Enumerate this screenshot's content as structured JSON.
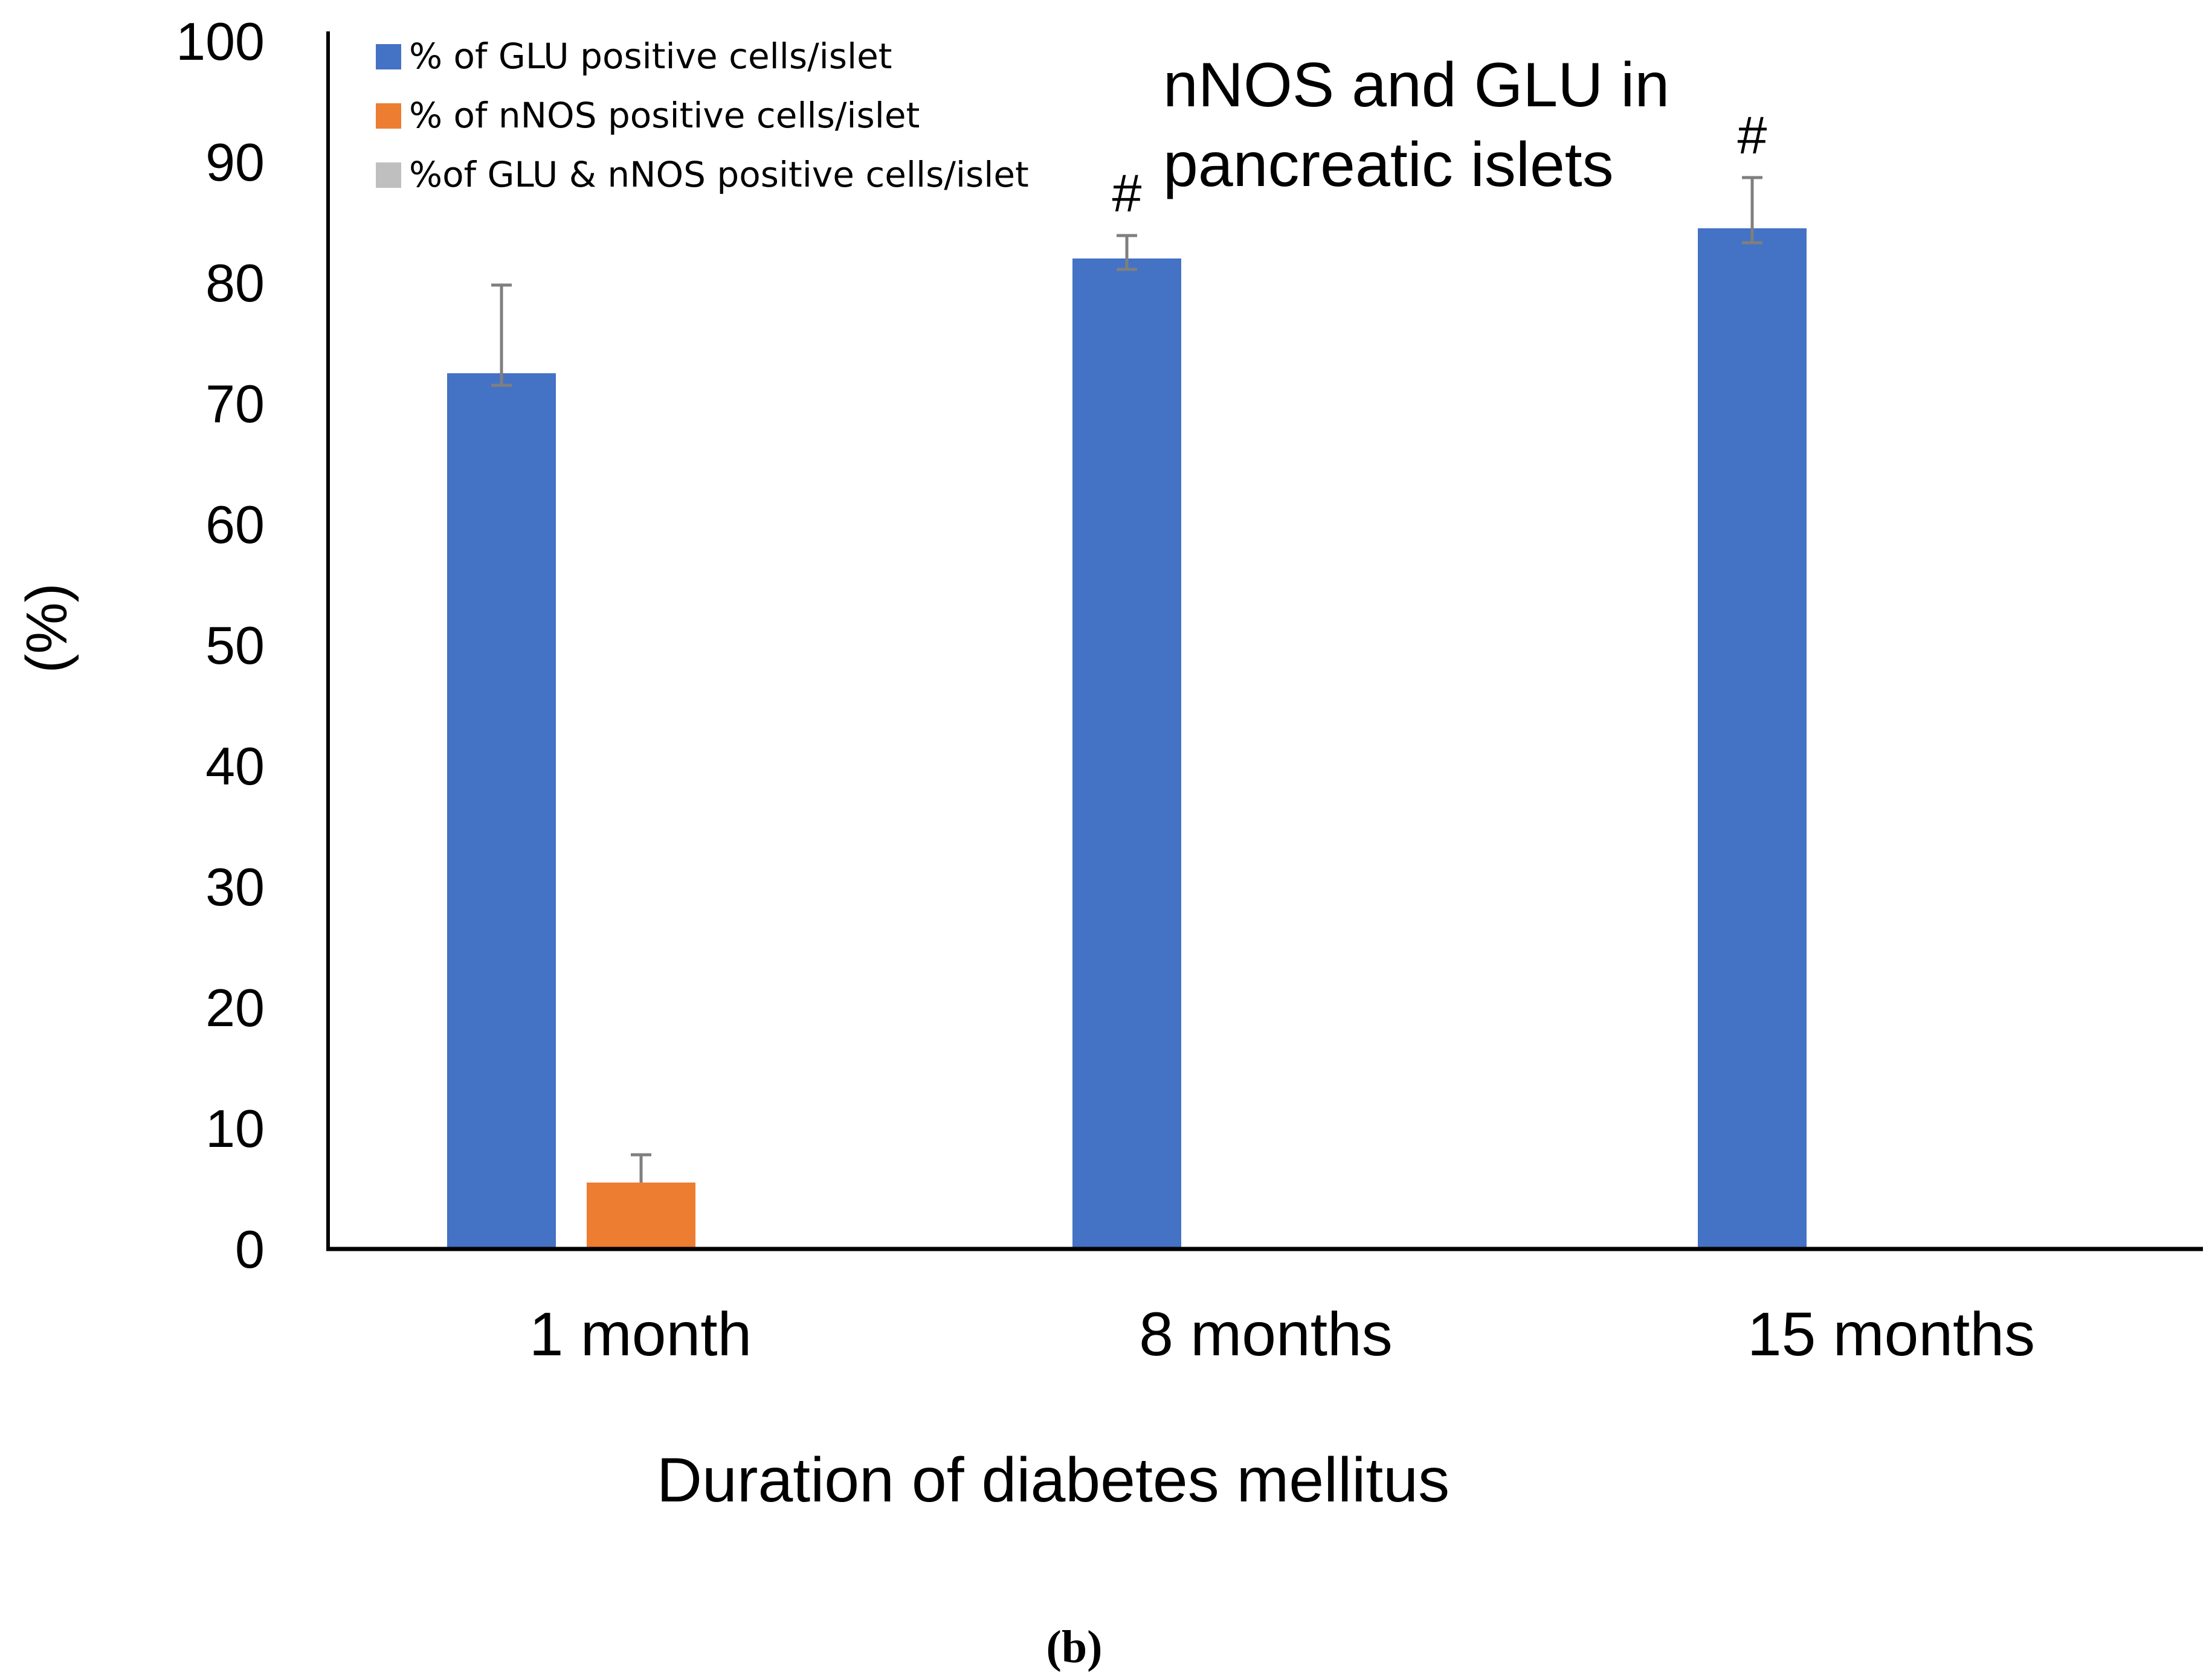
{
  "chart_data": {
    "type": "bar",
    "title": "nNOS and GLU in pancreatic islets",
    "title_lines": [
      "nNOS and GLU in",
      "pancreatic islets"
    ],
    "xlabel": "Duration of diabetes mellitus",
    "ylabel": "(%)",
    "ylim": [
      0,
      100
    ],
    "yticks": [
      0,
      10,
      20,
      30,
      40,
      50,
      60,
      70,
      80,
      90,
      100
    ],
    "categories": [
      "1 month",
      "8 months",
      "15 months"
    ],
    "legend_position": "top-left",
    "series": [
      {
        "name": "% of GLU positive cells/islet",
        "color": "#4472C4",
        "values": [
          72.5,
          82,
          84.5
        ],
        "error_upper": [
          7.3,
          1.9,
          4.2
        ],
        "error_lower": [
          1.0,
          0.9,
          1.2
        ]
      },
      {
        "name": "% of nNOS positive cells/islet",
        "color": "#ED7D31",
        "values": [
          5.5,
          0,
          0
        ],
        "error_upper": [
          2.3,
          0,
          0
        ],
        "error_lower": [
          0,
          0,
          0
        ]
      },
      {
        "name": "%of GLU & nNOS positive cells/islet",
        "color": "#BFBFBF",
        "values": [
          0,
          0,
          0
        ],
        "error_upper": [
          0,
          0,
          0
        ],
        "error_lower": [
          0,
          0,
          0
        ]
      }
    ],
    "annotations": [
      {
        "text": "#",
        "category": "8 months",
        "series": 0
      },
      {
        "text": "#",
        "category": "15 months",
        "series": 0
      }
    ],
    "panel_label": "(b)",
    "error_bar_color": "#7F7F7F",
    "axis_color": "#000000"
  }
}
